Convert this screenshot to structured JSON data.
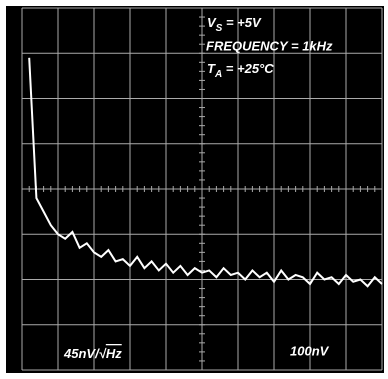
{
  "chart_data": {
    "type": "line",
    "annotations": {
      "supply": {
        "symbol": "V",
        "subscript": "S",
        "text": " = +5V"
      },
      "frequency": "FREQUENCY = 1kHz",
      "temperature": {
        "symbol": "T",
        "subscript": "A",
        "text": " = +25°C"
      },
      "horizontal_scale": {
        "text": "45nV/√",
        "overline": "Hz"
      },
      "vertical_scale": "100nV"
    },
    "x": [
      0.2,
      0.4,
      0.6,
      0.8,
      1.0,
      1.2,
      1.4,
      1.6,
      1.8,
      2.0,
      2.2,
      2.4,
      2.6,
      2.8,
      3.0,
      3.2,
      3.4,
      3.6,
      3.8,
      4.0,
      4.2,
      4.4,
      4.6,
      4.8,
      5.0,
      5.2,
      5.4,
      5.6,
      5.8,
      6.0,
      6.2,
      6.4,
      6.6,
      6.8,
      7.0,
      7.2,
      7.4,
      7.6,
      7.8,
      8.0,
      8.2,
      8.4,
      8.6,
      8.8,
      9.0,
      9.2,
      9.4,
      9.6,
      9.8,
      10.0
    ],
    "values": [
      2.9,
      -0.2,
      -0.5,
      -0.8,
      -1.0,
      -1.1,
      -0.95,
      -1.3,
      -1.2,
      -1.4,
      -1.5,
      -1.35,
      -1.6,
      -1.55,
      -1.7,
      -1.5,
      -1.75,
      -1.6,
      -1.8,
      -1.65,
      -1.85,
      -1.7,
      -1.9,
      -1.75,
      -1.85,
      -1.8,
      -1.95,
      -1.75,
      -1.9,
      -1.85,
      -2.0,
      -1.8,
      -1.95,
      -1.85,
      -2.05,
      -1.8,
      -2.0,
      -1.9,
      -1.95,
      -2.1,
      -1.85,
      -2.0,
      -1.95,
      -2.1,
      -1.9,
      -2.05,
      -2.0,
      -2.15,
      -1.95,
      -2.1
    ],
    "color": "#ffffff",
    "xlim": [
      0,
      10
    ],
    "ylim": [
      -4,
      4
    ],
    "grid": true
  }
}
